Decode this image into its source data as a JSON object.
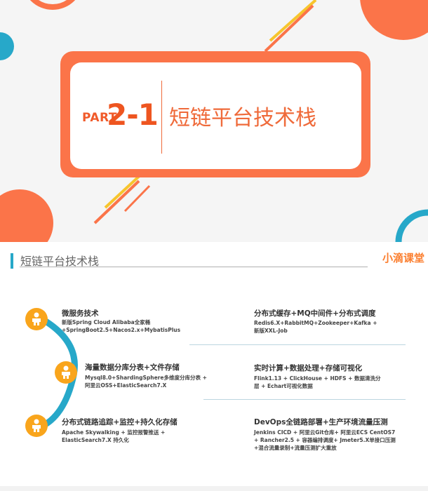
{
  "slide1": {
    "part_word": "PART",
    "part_number": "2-1",
    "title": "短链平台技术栈"
  },
  "slide2": {
    "header_title": "短链平台技术栈",
    "brand": "小滴课堂",
    "sections": [
      {
        "title": "微服务技术",
        "body": "新版Spring Cloud Alibaba全家桶 +SpringBoot2.5+Nacos2.x+MybatisPlus"
      },
      {
        "title": "海量数据分库分表+文件存储",
        "body": "Mysql8.0+ShardingSphere多维度分库分表 + 阿里云OSS+ElasticSearch7.X"
      },
      {
        "title": "分布式链路追踪+监控+持久化存储",
        "body": "Apache Skywalking + 监控报警推送 + ElasticSearch7.X 持久化"
      },
      {
        "title": "分布式缓存+MQ中间件+分布式调度",
        "body": "Redis6.X+RabbitMQ+Zookeeper+Kafka + 新版XXL-Job"
      },
      {
        "title": "实时计算+数据处理+存储可视化",
        "body": "Flink1.13 + ClickHouse + HDFS + 数据清洗分层 + Echart可视化数据"
      },
      {
        "title": "DevOps全链路部署+生产环境流量压测",
        "body": "Jenkins CICD + 阿里云Git仓库+ 阿里云ECS CentOS7 + Rancher2.5 + 容器编排调度+ Jmeter5.X单接口压测+混合流量录制+流量压测扩大重放"
      }
    ]
  },
  "colors": {
    "orange": "#fb7449",
    "accent_orange": "#ee5520",
    "teal": "#27a8c9",
    "yellow": "#f9a51c"
  },
  "icons": [
    "person-icon"
  ]
}
